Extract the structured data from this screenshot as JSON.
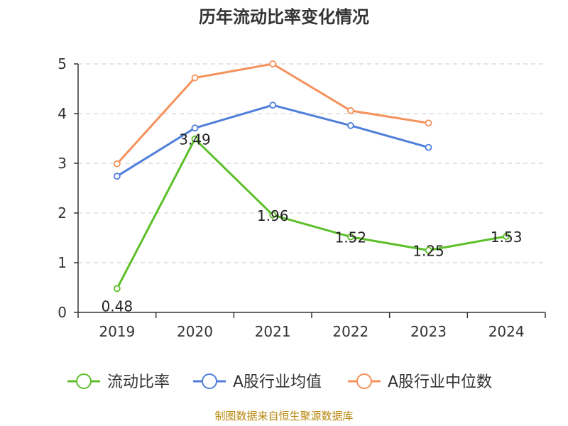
{
  "chart_data": {
    "type": "line",
    "title": "历年流动比率变化情况",
    "categories": [
      "2019",
      "2020",
      "2021",
      "2022",
      "2023",
      "2024"
    ],
    "ylim": [
      0,
      5
    ],
    "yticks": [
      "0",
      "1",
      "2",
      "3",
      "4",
      "5"
    ],
    "grid": true,
    "legend_position": "bottom",
    "series": [
      {
        "name": "流动比率",
        "color": "#5dbf2a",
        "values": [
          0.48,
          3.49,
          1.96,
          1.52,
          1.25,
          1.53
        ],
        "labels": [
          "0.48",
          "3.49",
          "1.96",
          "1.52",
          "1.25",
          "1.53"
        ]
      },
      {
        "name": "A股行业均值",
        "color": "#4f7fdb",
        "values": [
          2.74,
          3.71,
          4.17,
          3.76,
          3.32,
          null
        ]
      },
      {
        "name": "A股行业中位数",
        "color": "#f5915a",
        "values": [
          2.99,
          4.72,
          5.0,
          4.06,
          3.81,
          null
        ]
      }
    ]
  },
  "source": "制图数据来自恒生聚源数据库"
}
